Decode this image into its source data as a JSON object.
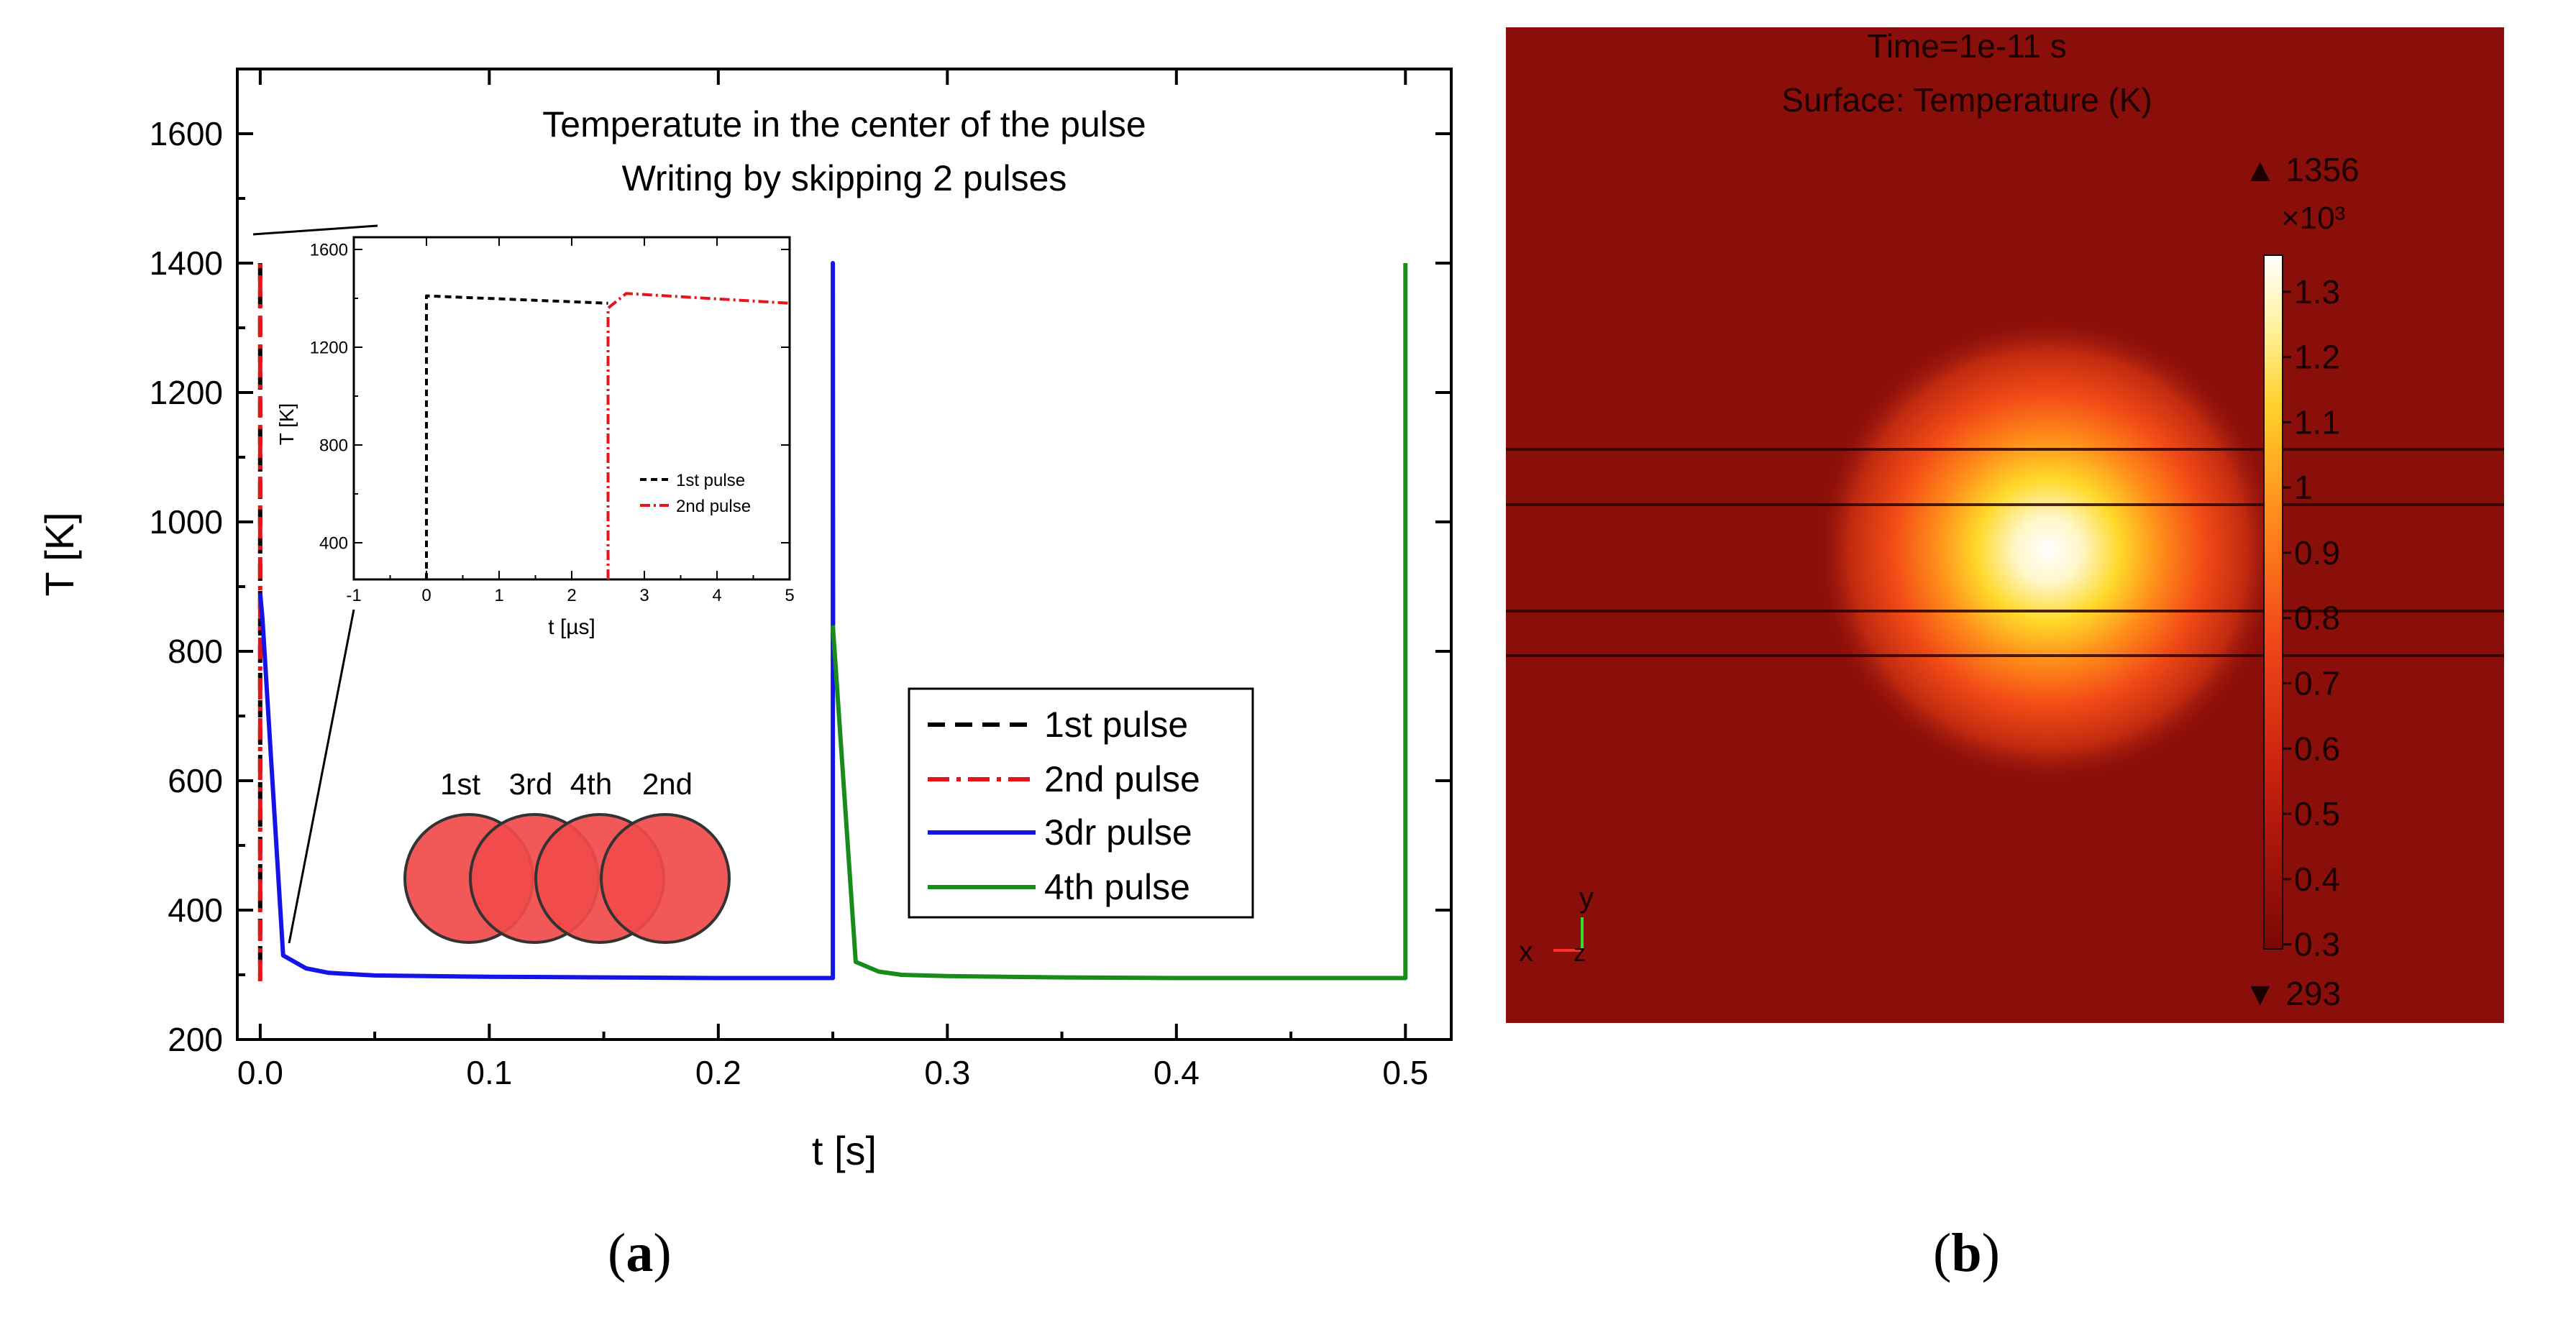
{
  "chart_data": [
    {
      "type": "line",
      "title": [
        "Temperatute in the center of the pulse",
        "Writing by skipping 2 pulses"
      ],
      "xlabel": "t [s]",
      "ylabel": "T [K]",
      "xlim": [
        -0.01,
        0.52
      ],
      "ylim": [
        200,
        1700
      ],
      "xticks": [
        "0.0",
        "0.1",
        "0.2",
        "0.3",
        "0.4",
        "0.5"
      ],
      "yticks": [
        "200",
        "400",
        "600",
        "800",
        "1000",
        "1200",
        "1400",
        "1600"
      ],
      "legend": {
        "position": "lower-right",
        "entries": [
          "1st pulse",
          "2nd pulse",
          "3dr pulse",
          "4th pulse"
        ]
      },
      "series": [
        {
          "name": "1st pulse",
          "color": "#000000",
          "style": "dashed",
          "x": [
            0.0,
            0.0
          ],
          "y": [
            1400,
            300
          ]
        },
        {
          "name": "2nd pulse",
          "color": "#e8141c",
          "style": "dashdot",
          "x": [
            0.0,
            0.0
          ],
          "y": [
            290,
            1410
          ]
        },
        {
          "name": "3dr pulse",
          "color": "#1414e6",
          "style": "solid",
          "x": [
            0.0,
            0.001,
            0.01,
            0.02,
            0.03,
            0.05,
            0.1,
            0.15,
            0.2,
            0.25,
            0.25,
            0.2501
          ],
          "y": [
            890,
            850,
            330,
            310,
            303,
            299,
            297,
            296,
            295,
            295,
            1400,
            840
          ]
        },
        {
          "name": "4th pulse",
          "color": "#188c18",
          "style": "solid",
          "x": [
            0.25,
            0.26,
            0.27,
            0.28,
            0.3,
            0.35,
            0.4,
            0.45,
            0.5,
            0.5
          ],
          "y": [
            840,
            320,
            305,
            300,
            298,
            296,
            295,
            295,
            295,
            1400
          ]
        }
      ],
      "spot_diagram": {
        "labels": [
          "1st",
          "3rd",
          "4th",
          "2nd"
        ],
        "fill": "#f24a4a"
      }
    },
    {
      "type": "line",
      "title": "",
      "xlabel": "t [µs]",
      "ylabel": "T [K]",
      "xlim": [
        -1,
        5
      ],
      "ylim": [
        250,
        1650
      ],
      "xticks": [
        "-1",
        "0",
        "1",
        "2",
        "3",
        "4",
        "5"
      ],
      "yticks": [
        "400",
        "800",
        "1200",
        "1600"
      ],
      "legend": {
        "position": "lower-right",
        "entries": [
          "1st pulse",
          "2nd pulse"
        ]
      },
      "series": [
        {
          "name": "1st pulse",
          "color": "#000000",
          "style": "dashed",
          "x": [
            0.0,
            0.0,
            2.5
          ],
          "y": [
            250,
            1410,
            1380
          ]
        },
        {
          "name": "2nd pulse",
          "color": "#e8141c",
          "style": "dashdot",
          "x": [
            2.5,
            2.5,
            2.75,
            5.0
          ],
          "y": [
            250,
            1360,
            1420,
            1380
          ]
        }
      ]
    },
    {
      "type": "heatmap",
      "title": [
        "Time=1e-11 s",
        "Surface: Temperature (K)"
      ],
      "colorbar": {
        "max_label": "▲ 1356",
        "multiplier": "×10³",
        "ticks": [
          "1.3",
          "1.2",
          "1.1",
          "1",
          "0.9",
          "0.8",
          "0.7",
          "0.6",
          "0.5",
          "0.4",
          "0.3"
        ],
        "min_label": "▼ 293",
        "vmin": 0.293,
        "vmax": 1.356
      },
      "axis_triad": {
        "up": "y",
        "left": "x",
        "out": "z"
      },
      "background_color": "#8a0e0a"
    }
  ],
  "panel_labels": {
    "a": "a",
    "b": "b"
  }
}
